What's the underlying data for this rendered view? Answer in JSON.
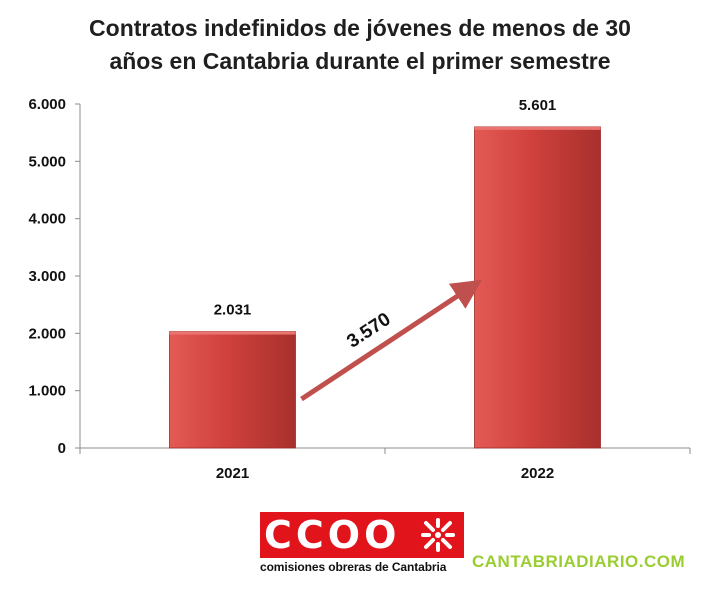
{
  "chart_data": {
    "type": "bar",
    "title_lines": [
      "Contratos indefinidos de jóvenes de menos de 30",
      "años en Cantabria durante el primer semestre"
    ],
    "categories": [
      "2021",
      "2022"
    ],
    "values": [
      2031,
      5601
    ],
    "value_labels": [
      "2.031",
      "5.601"
    ],
    "yticks": [
      0,
      1000,
      2000,
      3000,
      4000,
      5000,
      6000
    ],
    "ytick_labels": [
      "0",
      "1.000",
      "2.000",
      "3.000",
      "4.000",
      "5.000",
      "6.000"
    ],
    "ylim": [
      0,
      6000
    ],
    "grid": false,
    "legend": "none",
    "bar_color": "#d0413d",
    "annotation": {
      "text": "3.570",
      "from": "2021",
      "to": "2022",
      "color": "#c0504d"
    }
  },
  "logo": {
    "text": "CCOO",
    "caption": "comisiones obreras de Cantabria",
    "color": "#e2141b"
  },
  "watermark": {
    "text": "CANTABRIADIARIO.COM",
    "color": "#9acd32"
  }
}
